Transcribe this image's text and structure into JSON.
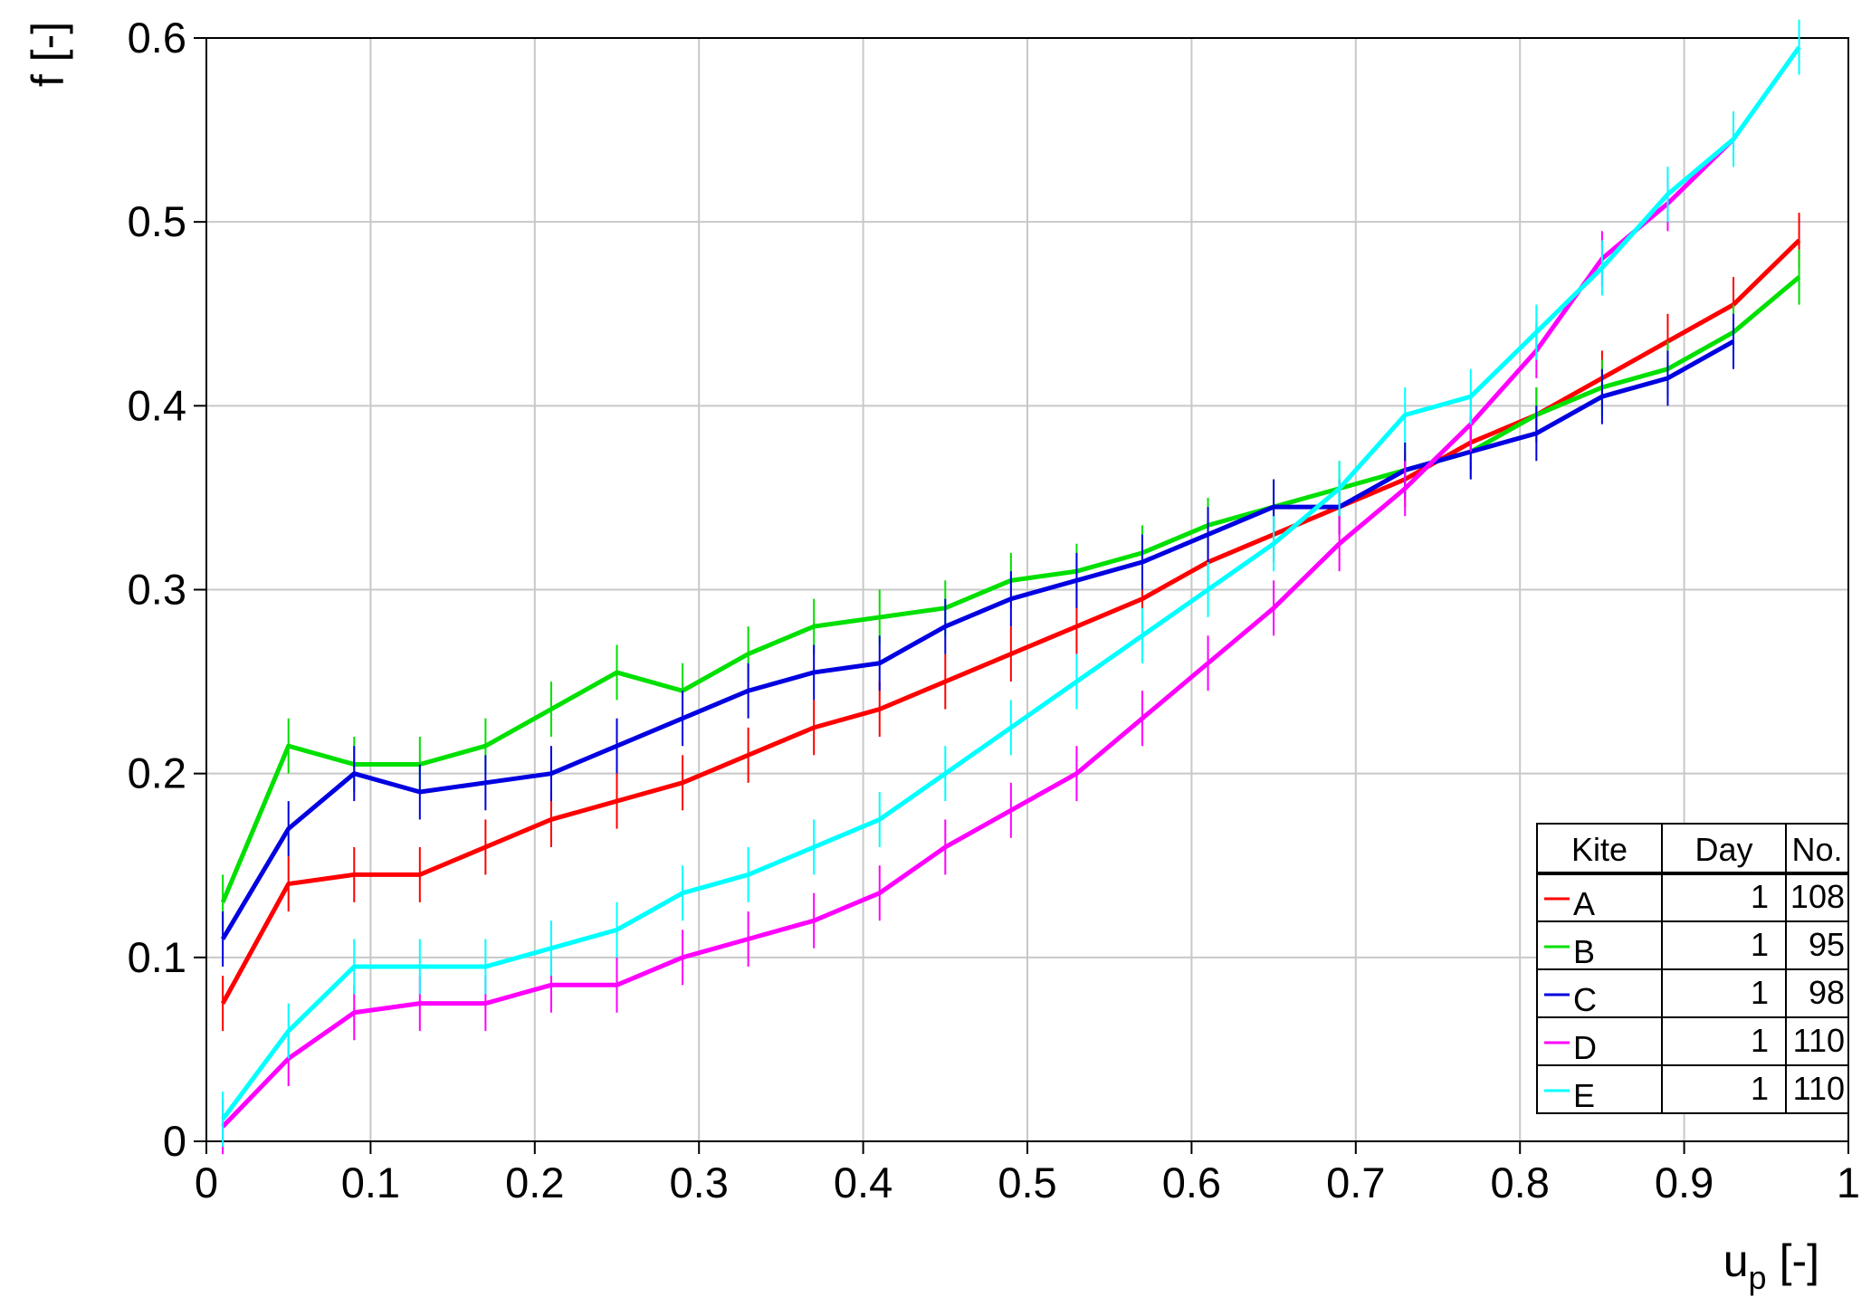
{
  "chart_data": {
    "type": "line",
    "xlabel": "u",
    "xlabel_sub": "p",
    "xlabel_unit": "[-]",
    "ylabel": "f [-]",
    "x": [
      0.01,
      0.05,
      0.09,
      0.13,
      0.17,
      0.21,
      0.25,
      0.29,
      0.33,
      0.37,
      0.41,
      0.45,
      0.49,
      0.53,
      0.57,
      0.61,
      0.65,
      0.69,
      0.73,
      0.77,
      0.81,
      0.85,
      0.89,
      0.93,
      0.97
    ],
    "series": [
      {
        "name": "A",
        "color": "#ff0000",
        "day": 1,
        "count": 108,
        "error": 0.015,
        "values": [
          0.075,
          0.14,
          0.145,
          0.145,
          0.16,
          0.175,
          0.185,
          0.195,
          0.21,
          0.225,
          0.235,
          0.25,
          0.265,
          0.28,
          0.295,
          0.315,
          0.33,
          0.345,
          0.36,
          0.38,
          0.395,
          0.415,
          0.435,
          0.455,
          0.49
        ]
      },
      {
        "name": "B",
        "color": "#00e000",
        "day": 1,
        "count": 95,
        "error": 0.015,
        "values": [
          0.13,
          0.215,
          0.205,
          0.205,
          0.215,
          0.235,
          0.255,
          0.245,
          0.265,
          0.28,
          0.285,
          0.29,
          0.305,
          0.31,
          0.32,
          0.335,
          0.345,
          0.355,
          0.365,
          0.375,
          0.395,
          0.41,
          0.42,
          0.44,
          0.47
        ]
      },
      {
        "name": "C",
        "color": "#0000e0",
        "day": 1,
        "count": 98,
        "error": 0.015,
        "values": [
          0.11,
          0.17,
          0.2,
          0.19,
          0.195,
          0.2,
          0.215,
          0.23,
          0.245,
          0.255,
          0.26,
          0.28,
          0.295,
          0.305,
          0.315,
          0.33,
          0.345,
          0.345,
          0.365,
          0.375,
          0.385,
          0.405,
          0.415,
          0.435,
          null
        ]
      },
      {
        "name": "D",
        "color": "#ff00ff",
        "day": 1,
        "count": 110,
        "error": 0.015,
        "values": [
          0.008,
          0.045,
          0.07,
          0.075,
          0.075,
          0.085,
          0.085,
          0.1,
          0.11,
          0.12,
          0.135,
          0.16,
          0.18,
          0.2,
          0.23,
          0.26,
          0.29,
          0.325,
          0.355,
          0.39,
          0.43,
          0.48,
          0.51,
          0.545,
          null
        ]
      },
      {
        "name": "E",
        "color": "#00ffff",
        "day": 1,
        "count": 110,
        "error": 0.015,
        "values": [
          0.012,
          0.06,
          0.095,
          0.095,
          0.095,
          0.105,
          0.115,
          0.135,
          0.145,
          0.16,
          0.175,
          0.2,
          0.225,
          0.25,
          0.275,
          0.3,
          0.325,
          0.355,
          0.395,
          0.405,
          0.44,
          0.475,
          0.515,
          0.545,
          0.595
        ]
      }
    ],
    "legend_headers": [
      "Kite",
      "Day",
      "No."
    ],
    "xlim": [
      0,
      1
    ],
    "xticks": [
      0,
      0.1,
      0.2,
      0.3,
      0.4,
      0.5,
      0.6,
      0.7,
      0.8,
      0.9,
      1
    ],
    "ylim": [
      0,
      0.6
    ],
    "yticks": [
      0,
      0.1,
      0.2,
      0.3,
      0.4,
      0.5,
      0.6
    ],
    "grid": true,
    "legend": "lower right"
  }
}
